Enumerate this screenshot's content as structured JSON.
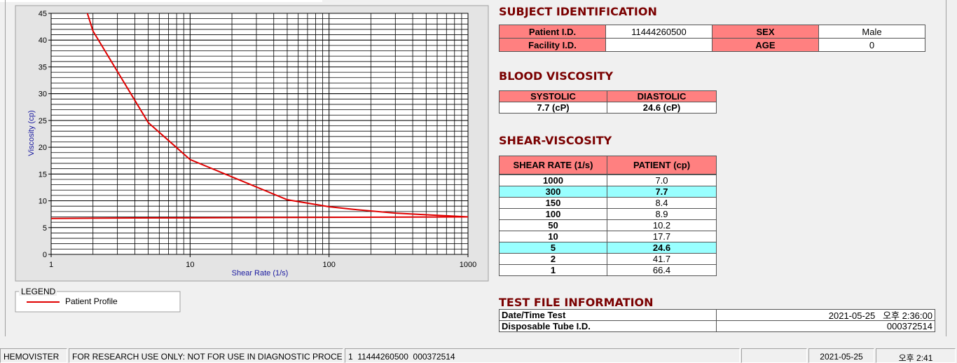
{
  "chart_data": {
    "type": "line",
    "x_label": "Shear Rate (1/s)",
    "y_label": "Viscosity (cp)",
    "log_x": true,
    "xlim": [
      1,
      1000
    ],
    "xticks": [
      1,
      10,
      100,
      1000
    ],
    "ylim": [
      0,
      45
    ],
    "yticks": [
      0,
      5,
      10,
      15,
      20,
      25,
      30,
      35,
      40,
      45
    ],
    "grid": true,
    "minor_grid": true,
    "legend_title": "LEGEND",
    "series": [
      {
        "name": "Patient Profile",
        "color": "#e00000",
        "x": [
          1,
          2,
          5,
          10,
          50,
          100,
          150,
          300,
          1000
        ],
        "values": [
          66.4,
          41.7,
          24.6,
          17.7,
          10.2,
          8.9,
          8.4,
          7.7,
          7.0
        ]
      },
      {
        "color": "#e00000",
        "x": [
          1,
          4,
          60,
          1000
        ],
        "values": [
          6.7,
          6.8,
          6.9,
          7.0
        ]
      }
    ]
  },
  "subject_identification": {
    "title": "SUBJECT IDENTIFICATION",
    "rows": [
      [
        "Patient I.D.",
        "11444260500",
        "SEX",
        "Male"
      ],
      [
        "Facility I.D.",
        null,
        "AGE",
        "0"
      ]
    ]
  },
  "blood_viscosity": {
    "title": "BLOOD VISCOSITY",
    "headers": [
      "SYSTOLIC",
      "DIASTOLIC"
    ],
    "values": [
      "7.7 (cP)",
      "24.6 (cP)"
    ]
  },
  "shear_viscosity": {
    "title": "SHEAR-VISCOSITY",
    "headers": [
      "SHEAR RATE (1/s)",
      "PATIENT (cp)"
    ],
    "rows": [
      [
        "1000",
        "7.0"
      ],
      [
        "300",
        "7.7"
      ],
      [
        "150",
        "8.4"
      ],
      [
        "100",
        "8.9"
      ],
      [
        "50",
        "10.2"
      ],
      [
        "10",
        "17.7"
      ],
      [
        "5",
        "24.6"
      ],
      [
        "2",
        "41.7"
      ],
      [
        "1",
        "66.4"
      ]
    ],
    "highlighted_rows": [
      1,
      6
    ],
    "highlight_color": "#99ffff"
  },
  "test_file_information": {
    "title": "TEST FILE INFORMATION",
    "rows": [
      [
        "Date/Time Test",
        "2021-05-25   오후 2:36:00"
      ],
      [
        "Disposable Tube I.D.",
        "000372514"
      ]
    ]
  },
  "status_bar": [
    "HEMOVISTER",
    "FOR RESEARCH USE ONLY: NOT FOR USE IN DIAGNOSTIC PROCEDURES",
    "1  11444260500  000372514",
    null,
    "2021-05-25",
    "오후 2:41"
  ]
}
